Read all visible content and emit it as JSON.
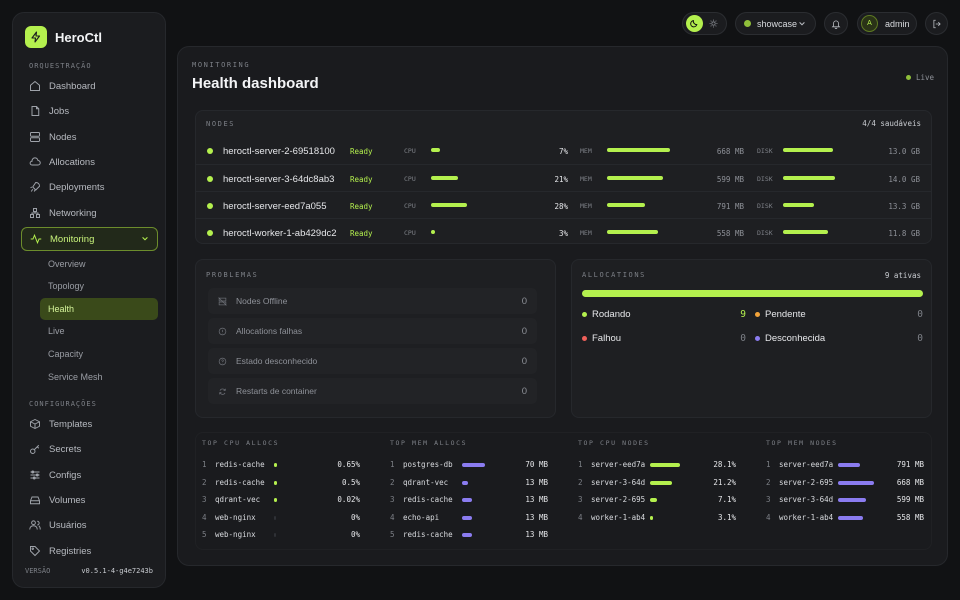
{
  "app": {
    "name": "HeroCtl"
  },
  "sidebar": {
    "section_orch": "ORQUESTRAÇÃO",
    "items": [
      {
        "label": "Dashboard",
        "icon": "home-icon"
      },
      {
        "label": "Jobs",
        "icon": "document-icon"
      },
      {
        "label": "Nodes",
        "icon": "server-icon"
      },
      {
        "label": "Allocations",
        "icon": "cloud-icon"
      },
      {
        "label": "Deployments",
        "icon": "rocket-icon"
      },
      {
        "label": "Networking",
        "icon": "network-icon"
      },
      {
        "label": "Monitoring",
        "icon": "activity-icon"
      }
    ],
    "monitoring_sub": [
      "Overview",
      "Topology",
      "Health",
      "Live",
      "Capacity",
      "Service Mesh"
    ],
    "section_config": "CONFIGURAÇÕES",
    "config_items": [
      {
        "label": "Templates",
        "icon": "box-icon"
      },
      {
        "label": "Secrets",
        "icon": "key-icon"
      },
      {
        "label": "Configs",
        "icon": "sliders-icon"
      },
      {
        "label": "Volumes",
        "icon": "drive-icon"
      },
      {
        "label": "Usuários",
        "icon": "users-icon"
      },
      {
        "label": "Registries",
        "icon": "tag-icon"
      }
    ],
    "version_label": "VERSÃO",
    "version": "v0.5.1-4-g4e7243b"
  },
  "topbar": {
    "env": "showcase",
    "user": "admin",
    "avatar": "A"
  },
  "page": {
    "eyebrow": "MONITORING",
    "title": "Health dashboard",
    "live": "Live"
  },
  "nodes": {
    "label": "NODES",
    "summary": "4/4 saudáveis",
    "rows": [
      {
        "name": "heroctl-server-2-69518100",
        "status": "Ready",
        "cpu_pct": 7,
        "cpu": "7%",
        "mem_pct": 0.7,
        "mem": "668 MB",
        "disk_pct": 0.55,
        "disk": "13.0 GB"
      },
      {
        "name": "heroctl-server-3-64dc8ab3",
        "status": "Ready",
        "cpu_pct": 21,
        "cpu": "21%",
        "mem_pct": 0.62,
        "mem": "599 MB",
        "disk_pct": 0.58,
        "disk": "14.0 GB"
      },
      {
        "name": "heroctl-server-eed7a055",
        "status": "Ready",
        "cpu_pct": 28,
        "cpu": "28%",
        "mem_pct": 0.42,
        "mem": "791 MB",
        "disk_pct": 0.35,
        "disk": "13.3 GB"
      },
      {
        "name": "heroctl-worker-1-ab429dc2",
        "status": "Ready",
        "cpu_pct": 3,
        "cpu": "3%",
        "mem_pct": 0.57,
        "mem": "558 MB",
        "disk_pct": 0.5,
        "disk": "11.8 GB"
      }
    ],
    "cpu_label": "CPU",
    "mem_label": "MEM",
    "disk_label": "DISK"
  },
  "problems": {
    "label": "PROBLEMAS",
    "items": [
      {
        "label": "Nodes Offline",
        "count": "0",
        "icon": "server-off-icon"
      },
      {
        "label": "Allocations falhas",
        "count": "0",
        "icon": "alert-icon"
      },
      {
        "label": "Estado desconhecido",
        "count": "0",
        "icon": "help-icon"
      },
      {
        "label": "Restarts de container",
        "count": "0",
        "icon": "refresh-icon"
      }
    ]
  },
  "allocations": {
    "label": "ALLOCATIONS",
    "summary": "9 ativas",
    "running_fraction": 1.0,
    "stats": [
      {
        "label": "Rodando",
        "count": "9",
        "color": "#b4f04e"
      },
      {
        "label": "Pendente",
        "count": "0",
        "color": "#f2a33a"
      },
      {
        "label": "Falhou",
        "count": "0",
        "color": "#f0605a"
      },
      {
        "label": "Desconhecida",
        "count": "0",
        "color": "#8b7cf0"
      }
    ]
  },
  "tops": [
    {
      "label": "TOP CPU ALLOCS",
      "color": "#b4f04e",
      "rows": [
        {
          "i": "1",
          "name": "redis-cache",
          "value": "0.65%",
          "frac": 0.02
        },
        {
          "i": "2",
          "name": "redis-cache",
          "value": "0.5%",
          "frac": 0.015
        },
        {
          "i": "3",
          "name": "qdrant-vec",
          "value": "0.02%",
          "frac": 0.005
        },
        {
          "i": "4",
          "name": "web-nginx",
          "value": "0%",
          "frac": 0
        },
        {
          "i": "5",
          "name": "web-nginx",
          "value": "0%",
          "frac": 0
        }
      ]
    },
    {
      "label": "TOP MEM ALLOCS",
      "color": "#8b7cf0",
      "rows": [
        {
          "i": "1",
          "name": "postgres-db",
          "value": "70 MB",
          "frac": 0.22
        },
        {
          "i": "2",
          "name": "qdrant-vec",
          "value": "13 MB",
          "frac": 0.06
        },
        {
          "i": "3",
          "name": "redis-cache",
          "value": "13 MB",
          "frac": 0.09
        },
        {
          "i": "4",
          "name": "echo-api",
          "value": "13 MB",
          "frac": 0.09
        },
        {
          "i": "5",
          "name": "redis-cache",
          "value": "13 MB",
          "frac": 0.09
        }
      ]
    },
    {
      "label": "TOP CPU NODES",
      "color": "#b4f04e",
      "rows": [
        {
          "i": "1",
          "name": "server-eed7a",
          "value": "28.1%",
          "frac": 0.28
        },
        {
          "i": "2",
          "name": "server-3-64d",
          "value": "21.2%",
          "frac": 0.21
        },
        {
          "i": "3",
          "name": "server-2-695",
          "value": "7.1%",
          "frac": 0.07
        },
        {
          "i": "4",
          "name": "worker-1-ab4",
          "value": "3.1%",
          "frac": 0.03
        }
      ]
    },
    {
      "label": "TOP MEM NODES",
      "color": "#8b7cf0",
      "rows": [
        {
          "i": "1",
          "name": "server-eed7a",
          "value": "791 MB",
          "frac": 0.21
        },
        {
          "i": "2",
          "name": "server-2-695",
          "value": "668 MB",
          "frac": 0.34
        },
        {
          "i": "3",
          "name": "server-3-64d",
          "value": "599 MB",
          "frac": 0.26
        },
        {
          "i": "4",
          "name": "worker-1-ab4",
          "value": "558 MB",
          "frac": 0.24
        }
      ]
    }
  ]
}
